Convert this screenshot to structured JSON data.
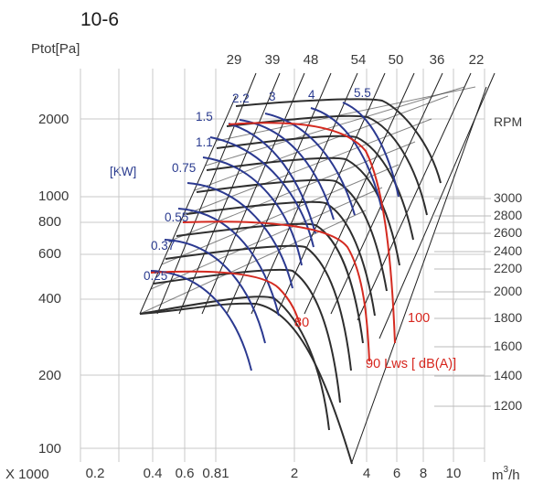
{
  "chart_data": {
    "type": "line",
    "title": "10-6",
    "ylabel": "Ptot[Pa]",
    "xunit_prefix": "X 1000",
    "xunit_base": "m",
    "xunit_sup": "3",
    "xunit_tail": "/h",
    "x_ticks": [
      "0.2",
      "0.4",
      "0.6",
      "0.81",
      "2",
      "4",
      "6",
      "8",
      "10"
    ],
    "y_ticks": [
      "100",
      "200",
      "400",
      "600",
      "800",
      "1000",
      "2000"
    ],
    "top_labels": [
      "29",
      "39",
      "48",
      "54",
      "50",
      "36",
      "22"
    ],
    "rpm_label": "RPM",
    "rpm_values": [
      "3000",
      "2800",
      "2600",
      "2400",
      "2200",
      "2000",
      "1800",
      "1600",
      "1400",
      "1200"
    ],
    "kw_label": "[KW]",
    "kw_values": [
      "2.2",
      "3",
      "4",
      "5.5",
      "1.5",
      "1.1",
      "0.75",
      "0.55",
      "0.37",
      "0.25"
    ],
    "db_labels": [
      "80",
      "90 Lws [ dB(A)]",
      "100"
    ],
    "x_scale": "log",
    "y_scale": "log",
    "grid": true,
    "colors": {
      "rpm": "#2e2e2e",
      "power": "#2b3990",
      "sound": "#d42a20"
    }
  }
}
